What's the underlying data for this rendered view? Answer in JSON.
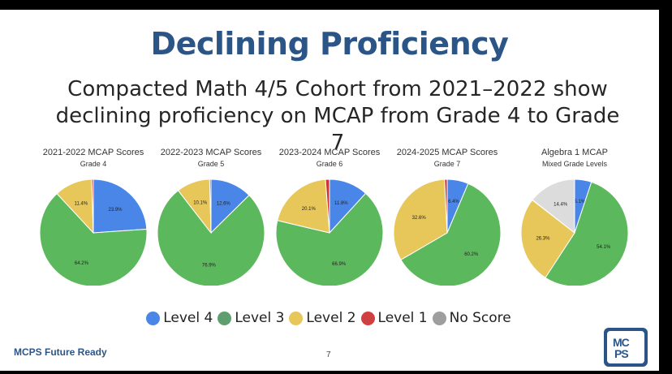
{
  "slide": {
    "title": "Declining Proficiency",
    "subtitle": "Compacted Math 4/5 Cohort from 2021–2022 show declining proficiency on MCAP from Grade 4 to Grade 7",
    "footer": "MCPS Future Ready",
    "page_number": "7",
    "logo_text_top": "MC",
    "logo_text_bottom": "PS"
  },
  "colors": {
    "Level 4": "#4a86e8",
    "Level 3": "#5cb85c",
    "Level 2": "#e8c75a",
    "Level 1": "#cc3333",
    "No Score": "#dcdcdc",
    "title": "#2b5587"
  },
  "legend": {
    "items": [
      {
        "label": "Level 4",
        "color": "#4a86e8"
      },
      {
        "label": "Level 3",
        "color": "#5f9e6e"
      },
      {
        "label": "Level 2",
        "color": "#e8c75a"
      },
      {
        "label": "Level 1",
        "color": "#d04040"
      },
      {
        "label": "No Score",
        "color": "#9e9e9e"
      }
    ]
  },
  "chart_data": [
    {
      "type": "pie",
      "title": "2021-2022 MCAP Scores",
      "subtitle": "Grade 4",
      "slices": [
        {
          "label": "Level 4",
          "value": 23.9,
          "text": "23.9%"
        },
        {
          "label": "Level 3",
          "value": 64.2,
          "text": "64.2%"
        },
        {
          "label": "Level 2",
          "value": 11.4,
          "text": "11.4%"
        },
        {
          "label": "Level 1",
          "value": 0.5,
          "text": ""
        }
      ]
    },
    {
      "type": "pie",
      "title": "2022-2023 MCAP Scores",
      "subtitle": "Grade 5",
      "slices": [
        {
          "label": "Level 4",
          "value": 12.6,
          "text": "12.6%"
        },
        {
          "label": "Level 3",
          "value": 76.9,
          "text": "76.9%"
        },
        {
          "label": "Level 2",
          "value": 10.1,
          "text": "10.1%"
        },
        {
          "label": "Level 1",
          "value": 0.4,
          "text": ""
        }
      ]
    },
    {
      "type": "pie",
      "title": "2023-2024 MCAP Scores",
      "subtitle": "Grade 6",
      "slices": [
        {
          "label": "Level 4",
          "value": 11.8,
          "text": "11.8%"
        },
        {
          "label": "Level 3",
          "value": 66.9,
          "text": "66.9%"
        },
        {
          "label": "Level 2",
          "value": 20.1,
          "text": "20.1%"
        },
        {
          "label": "Level 1",
          "value": 1.2,
          "text": ""
        }
      ]
    },
    {
      "type": "pie",
      "title": "2024-2025 MCAP Scores",
      "subtitle": "Grade 7",
      "slices": [
        {
          "label": "Level 4",
          "value": 6.4,
          "text": "6.4%"
        },
        {
          "label": "Level 3",
          "value": 60.2,
          "text": "60.2%"
        },
        {
          "label": "Level 2",
          "value": 32.6,
          "text": "32.6%"
        },
        {
          "label": "Level 1",
          "value": 0.8,
          "text": ""
        }
      ]
    },
    {
      "type": "pie",
      "title": "Algebra 1 MCAP",
      "subtitle": "Mixed Grade Levels",
      "slices": [
        {
          "label": "Level 4",
          "value": 5.1,
          "text": "5.1%"
        },
        {
          "label": "Level 3",
          "value": 54.1,
          "text": "54.1%"
        },
        {
          "label": "Level 2",
          "value": 26.3,
          "text": "26.3%"
        },
        {
          "label": "Level 1",
          "value": 0.1,
          "text": ""
        },
        {
          "label": "No Score",
          "value": 14.4,
          "text": "14.4%"
        }
      ]
    }
  ]
}
